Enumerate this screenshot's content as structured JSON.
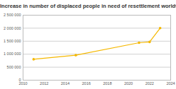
{
  "chart_data": {
    "type": "line",
    "title": "Increase in number of displaced people in need of resettlement worldwide",
    "x": [
      2011,
      2015,
      2021,
      2022,
      2023
    ],
    "series": [
      {
        "name": "Displaced people in need of resettlement",
        "color": "#f5b800",
        "marker": "circle",
        "values": [
          805000,
          960000,
          1440000,
          1470000,
          2003000
        ]
      }
    ],
    "xlim": [
      2010,
      2024
    ],
    "xticks": [
      2010,
      2012,
      2014,
      2016,
      2018,
      2020,
      2022,
      2024
    ],
    "ylim": [
      0,
      2500000
    ],
    "yticks": [
      0,
      {
        "value": 500000,
        "label": "500 000"
      },
      {
        "value": 1000000,
        "label": "1 000 000"
      },
      {
        "value": 1500000,
        "label": "1 500 000"
      },
      {
        "value": 2000000,
        "label": "2 000 000"
      },
      {
        "value": 2500000,
        "label": "2 500 000"
      }
    ],
    "grid": true
  }
}
